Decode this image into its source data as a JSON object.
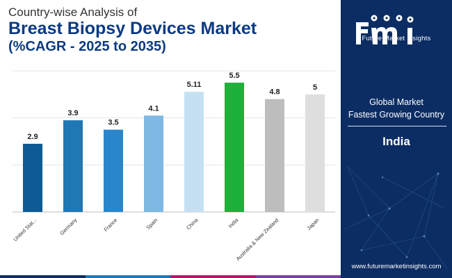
{
  "header": {
    "line1": "Country-wise Analysis of",
    "line2": "Breast Biopsy Devices Market",
    "line3": "(%CAGR - 2025 to 2035)"
  },
  "chart_data": {
    "type": "bar",
    "title": "Country-wise Analysis of Breast Biopsy Devices Market (%CAGR - 2025 to 2035)",
    "xlabel": "",
    "ylabel": "",
    "categories": [
      "United Stat...",
      "Germany",
      "France",
      "Spain",
      "China",
      "India",
      "Australia & New Zealand",
      "Japan"
    ],
    "values": [
      2.9,
      3.9,
      3.5,
      4.1,
      5.11,
      5.5,
      4.8,
      5
    ],
    "value_labels": [
      "2.9",
      "3.9",
      "3.5",
      "4.1",
      "5.11",
      "5.5",
      "4.8",
      "5"
    ],
    "colors": [
      "#0d5a94",
      "#1f78b4",
      "#2a86cc",
      "#7fb8e3",
      "#c5e0f2",
      "#1eb13a",
      "#bdbdbd",
      "#dedede"
    ],
    "ylim": [
      0,
      6
    ],
    "grid": true,
    "legend": "none"
  },
  "sidebar": {
    "logo_text": "Future Market Insights",
    "label1": "Global Market",
    "label2": "Fastest Growing Country",
    "country": "India",
    "url": "www.futuremarketinsights.com"
  },
  "bottom_bar_colors": [
    "#0c2d63",
    "#1f78b4",
    "#b0186e",
    "#7a3fa0"
  ]
}
